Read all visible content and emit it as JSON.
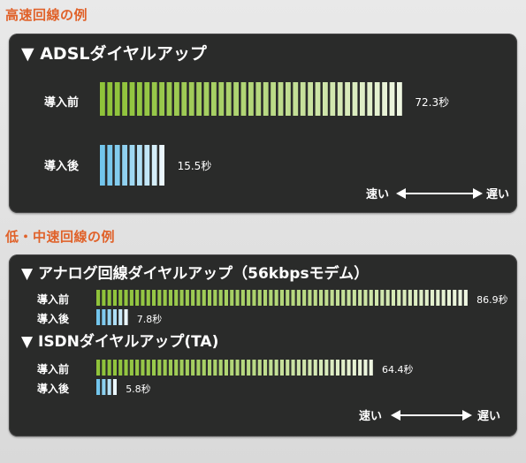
{
  "sections": [
    {
      "title": "高速回線の例"
    },
    {
      "title": "低・中速回線の例"
    }
  ],
  "colors": {
    "green_start": "#8fc33a",
    "green_end": "#ffffff",
    "blue_start": "#72c5ec",
    "blue_end": "#ffffff",
    "title_accent": "#e0622a",
    "panel_bg": "#2a2b2a"
  },
  "legend": {
    "fast": "速い",
    "slow": "遅い"
  },
  "chart_data": [
    {
      "type": "bar",
      "title": "▼ ADSLダイヤルアップ",
      "unit": "秒",
      "series": [
        {
          "name": "導入前",
          "label": "導入前",
          "value": 72.3,
          "value_label": "72.3秒",
          "color": "green"
        },
        {
          "name": "導入後",
          "label": "導入後",
          "value": 15.5,
          "value_label": "15.5秒",
          "color": "blue"
        }
      ]
    },
    {
      "type": "bar",
      "title": "▼ アナログ回線ダイヤルアップ（56kbpsモデム）",
      "unit": "秒",
      "series": [
        {
          "name": "導入前",
          "label": "導入前",
          "value": 86.9,
          "value_label": "86.9秒",
          "color": "green"
        },
        {
          "name": "導入後",
          "label": "導入後",
          "value": 7.8,
          "value_label": "7.8秒",
          "color": "blue"
        }
      ]
    },
    {
      "type": "bar",
      "title": "▼ ISDNダイヤルアップ(TA)",
      "unit": "秒",
      "series": [
        {
          "name": "導入前",
          "label": "導入前",
          "value": 64.4,
          "value_label": "64.4秒",
          "color": "green"
        },
        {
          "name": "導入後",
          "label": "導入後",
          "value": 5.8,
          "value_label": "5.8秒",
          "color": "blue"
        }
      ]
    }
  ]
}
